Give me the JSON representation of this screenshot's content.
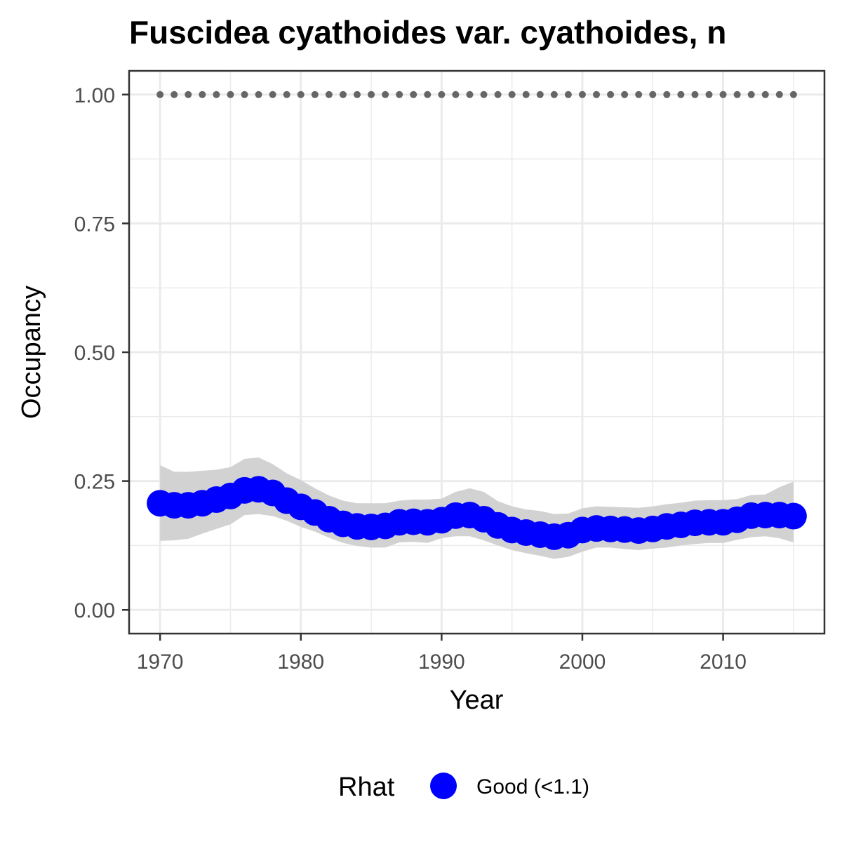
{
  "chart_data": {
    "type": "line",
    "title": "Fuscidea cyathoides var. cyathoides, n",
    "xlabel": "Year",
    "ylabel": "Occupancy",
    "xlim": [
      1967.8,
      2017.2
    ],
    "ylim": [
      -0.046,
      1.046
    ],
    "x_ticks": [
      1970,
      1980,
      1990,
      2000,
      2010
    ],
    "y_ticks": [
      0.0,
      0.25,
      0.5,
      0.75,
      1.0
    ],
    "y_tick_labels": [
      "0.00",
      "0.25",
      "0.50",
      "0.75",
      "1.00"
    ],
    "grid": true,
    "legend": {
      "position": "bottom",
      "title": "Rhat",
      "entries": [
        {
          "label": "Good (<1.1)",
          "color": "#0000ff"
        }
      ]
    },
    "colors": {
      "occupancy": "#0000ff",
      "ribbon": "#d2d2d2",
      "reference": "#666666"
    },
    "x": [
      1970,
      1971,
      1972,
      1973,
      1974,
      1975,
      1976,
      1977,
      1978,
      1979,
      1980,
      1981,
      1982,
      1983,
      1984,
      1985,
      1986,
      1987,
      1988,
      1989,
      1990,
      1991,
      1992,
      1993,
      1994,
      1995,
      1996,
      1997,
      1998,
      1999,
      2000,
      2001,
      2002,
      2003,
      2004,
      2005,
      2006,
      2007,
      2008,
      2009,
      2010,
      2011,
      2012,
      2013,
      2014,
      2015
    ],
    "series": [
      {
        "name": "Occupancy",
        "values": [
          0.207,
          0.203,
          0.203,
          0.207,
          0.214,
          0.221,
          0.232,
          0.234,
          0.227,
          0.212,
          0.2,
          0.189,
          0.176,
          0.167,
          0.162,
          0.161,
          0.163,
          0.17,
          0.171,
          0.17,
          0.174,
          0.183,
          0.184,
          0.176,
          0.164,
          0.155,
          0.15,
          0.146,
          0.142,
          0.145,
          0.155,
          0.158,
          0.157,
          0.156,
          0.154,
          0.157,
          0.162,
          0.165,
          0.169,
          0.17,
          0.17,
          0.175,
          0.183,
          0.184,
          0.184,
          0.182
        ]
      },
      {
        "name": "Upper",
        "values": [
          0.281,
          0.268,
          0.268,
          0.27,
          0.272,
          0.277,
          0.293,
          0.296,
          0.283,
          0.265,
          0.252,
          0.236,
          0.222,
          0.212,
          0.207,
          0.207,
          0.207,
          0.212,
          0.214,
          0.214,
          0.216,
          0.229,
          0.236,
          0.229,
          0.211,
          0.201,
          0.195,
          0.192,
          0.186,
          0.187,
          0.197,
          0.201,
          0.2,
          0.199,
          0.198,
          0.201,
          0.205,
          0.208,
          0.212,
          0.213,
          0.213,
          0.215,
          0.223,
          0.224,
          0.238,
          0.249
        ]
      },
      {
        "name": "Lower",
        "values": [
          0.134,
          0.135,
          0.138,
          0.148,
          0.157,
          0.166,
          0.184,
          0.186,
          0.182,
          0.173,
          0.161,
          0.152,
          0.14,
          0.13,
          0.124,
          0.121,
          0.121,
          0.131,
          0.132,
          0.13,
          0.139,
          0.143,
          0.143,
          0.135,
          0.125,
          0.116,
          0.11,
          0.105,
          0.099,
          0.103,
          0.113,
          0.121,
          0.121,
          0.118,
          0.116,
          0.119,
          0.121,
          0.125,
          0.128,
          0.13,
          0.13,
          0.136,
          0.141,
          0.143,
          0.139,
          0.131
        ]
      },
      {
        "name": "Reference",
        "values": [
          1,
          1,
          1,
          1,
          1,
          1,
          1,
          1,
          1,
          1,
          1,
          1,
          1,
          1,
          1,
          1,
          1,
          1,
          1,
          1,
          1,
          1,
          1,
          1,
          1,
          1,
          1,
          1,
          1,
          1,
          1,
          1,
          1,
          1,
          1,
          1,
          1,
          1,
          1,
          1,
          1,
          1,
          1,
          1,
          1,
          1
        ]
      }
    ]
  }
}
